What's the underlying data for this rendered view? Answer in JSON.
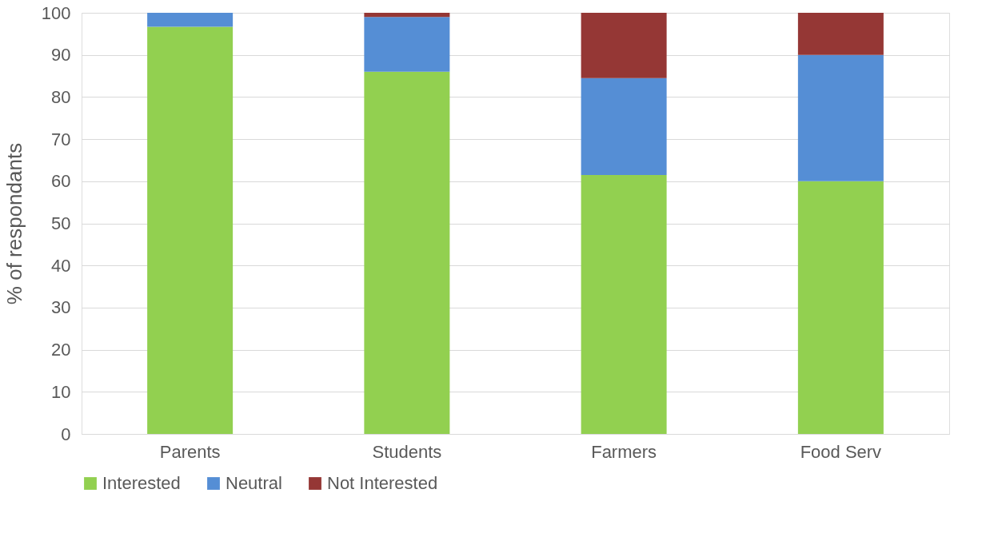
{
  "chart_data": {
    "type": "bar",
    "stacked": true,
    "ylabel": "% of respondants",
    "categories": [
      "Parents",
      "Students",
      "Farmers",
      "Food Serv"
    ],
    "series": [
      {
        "name": "Interested",
        "color": "#92d050",
        "values": [
          96.7,
          86,
          61.5,
          60
        ]
      },
      {
        "name": "Neutral",
        "color": "#558ed5",
        "values": [
          3.3,
          13,
          23,
          30
        ]
      },
      {
        "name": "Not Interested",
        "color": "#953735",
        "values": [
          0,
          1,
          15.5,
          10
        ]
      }
    ],
    "ylim": [
      0,
      100
    ],
    "yticks": [
      0,
      10,
      20,
      30,
      40,
      50,
      60,
      70,
      80,
      90,
      100
    ],
    "grid": "y",
    "legend": "bottom"
  }
}
